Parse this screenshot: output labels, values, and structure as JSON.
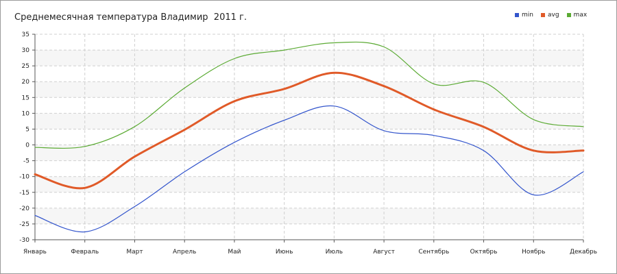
{
  "chart_data": {
    "type": "line",
    "title": "Среднемесячная температура Владимир  2011 г.",
    "categories": [
      "Январь",
      "Февраль",
      "Март",
      "Апрель",
      "Май",
      "Июнь",
      "Июль",
      "Август",
      "Сентябрь",
      "Октябрь",
      "Ноябрь",
      "Декабрь"
    ],
    "ylim": [
      -30,
      35
    ],
    "yticks": [
      -30,
      -25,
      -20,
      -15,
      -10,
      -5,
      0,
      5,
      10,
      15,
      20,
      25,
      30,
      35
    ],
    "grid": true,
    "legend_position": "top-right",
    "series": [
      {
        "name": "min",
        "color": "#3355cc",
        "values": [
          -22.3,
          -27.5,
          -19.5,
          -8.5,
          0.8,
          7.8,
          12.3,
          4.5,
          3.0,
          -1.8,
          -15.8,
          -8.5
        ]
      },
      {
        "name": "avg",
        "color": "#e05a28",
        "values": [
          -9.3,
          -13.6,
          -3.7,
          4.8,
          13.8,
          17.7,
          22.8,
          18.6,
          11.2,
          5.7,
          -1.8,
          -1.8
        ]
      },
      {
        "name": "max",
        "color": "#5aaa32",
        "values": [
          -0.8,
          -0.5,
          5.8,
          18.0,
          27.3,
          30.0,
          32.3,
          31.0,
          19.3,
          19.8,
          8.0,
          5.8
        ]
      }
    ]
  }
}
